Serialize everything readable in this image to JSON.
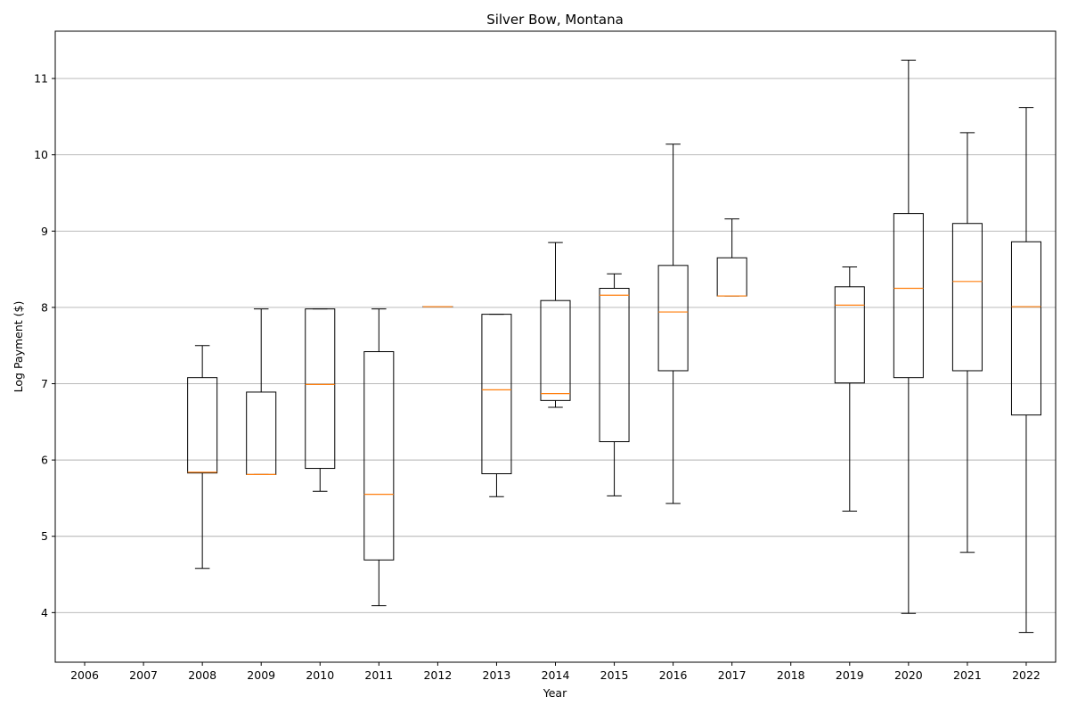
{
  "chart_data": {
    "type": "boxplot",
    "title": "Silver Bow, Montana",
    "xlabel": "Year",
    "ylabel": "Log Payment ($)",
    "ylim": [
      3.35,
      11.62
    ],
    "yticks": [
      4,
      5,
      6,
      7,
      8,
      9,
      10,
      11
    ],
    "grid": "y-major",
    "categories": [
      "2006",
      "2007",
      "2008",
      "2009",
      "2010",
      "2011",
      "2012",
      "2013",
      "2014",
      "2015",
      "2016",
      "2017",
      "2018",
      "2019",
      "2020",
      "2021",
      "2022"
    ],
    "boxes": [
      null,
      null,
      {
        "whisker_low": 4.58,
        "q1": 5.83,
        "median": 5.84,
        "q3": 7.08,
        "whisker_high": 7.5
      },
      {
        "whisker_low": 5.81,
        "q1": 5.81,
        "median": 5.81,
        "q3": 6.89,
        "whisker_high": 7.98
      },
      {
        "whisker_low": 5.59,
        "q1": 5.89,
        "median": 6.99,
        "q3": 7.98,
        "whisker_high": 7.98
      },
      {
        "whisker_low": 4.09,
        "q1": 4.69,
        "median": 5.55,
        "q3": 7.42,
        "whisker_high": 7.98
      },
      {
        "whisker_low": 8.01,
        "q1": 8.01,
        "median": 8.01,
        "q3": 8.01,
        "whisker_high": 8.01
      },
      {
        "whisker_low": 5.52,
        "q1": 5.82,
        "median": 6.92,
        "q3": 7.91,
        "whisker_high": 7.91
      },
      {
        "whisker_low": 6.69,
        "q1": 6.78,
        "median": 6.87,
        "q3": 8.09,
        "whisker_high": 8.85
      },
      {
        "whisker_low": 5.53,
        "q1": 6.24,
        "median": 8.16,
        "q3": 8.25,
        "whisker_high": 8.44
      },
      {
        "whisker_low": 5.43,
        "q1": 7.17,
        "median": 7.94,
        "q3": 8.55,
        "whisker_high": 10.14
      },
      {
        "whisker_low": 8.15,
        "q1": 8.15,
        "median": 8.15,
        "q3": 8.65,
        "whisker_high": 9.16
      },
      null,
      {
        "whisker_low": 5.33,
        "q1": 7.01,
        "median": 8.03,
        "q3": 8.27,
        "whisker_high": 8.53
      },
      {
        "whisker_low": 3.99,
        "q1": 7.08,
        "median": 8.25,
        "q3": 9.23,
        "whisker_high": 11.24
      },
      {
        "whisker_low": 4.79,
        "q1": 7.17,
        "median": 8.34,
        "q3": 9.1,
        "whisker_high": 10.29
      },
      {
        "whisker_low": 3.74,
        "q1": 6.59,
        "median": 8.01,
        "q3": 8.86,
        "whisker_high": 10.62
      }
    ],
    "colors": {
      "box": "#000000",
      "median": "#ff7f0e",
      "grid": "#b0b0b0"
    }
  }
}
